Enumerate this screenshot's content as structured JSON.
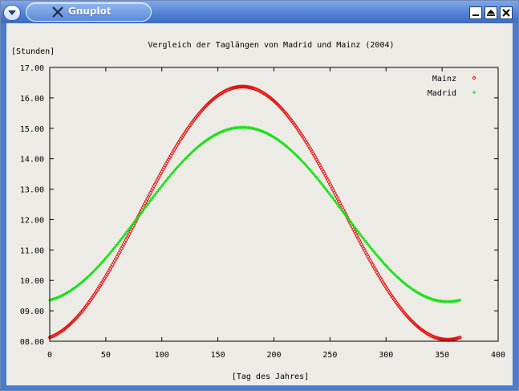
{
  "window": {
    "title": "Gnuplot",
    "icon": "x-logo-icon"
  },
  "titlebar_buttons": [
    "minimize-icon",
    "maximize-icon",
    "close-icon"
  ],
  "colors": {
    "mainz": "#e01010",
    "madrid": "#12e012",
    "frame": "#000000",
    "background": "#edebe6"
  },
  "chart_data": {
    "type": "scatter",
    "title": "Vergleich der Taglängen von Madrid und Mainz (2004)",
    "xlabel": "[Tag des Jahres]",
    "ylabel": "[Stunden]",
    "xlim": [
      0,
      400
    ],
    "ylim": [
      8,
      17
    ],
    "xticks": [
      "0",
      "50",
      "100",
      "150",
      "200",
      "250",
      "300",
      "350",
      "400"
    ],
    "yticks": [
      "08.00",
      "09.00",
      "10.00",
      "11.00",
      "12.00",
      "13.00",
      "14.00",
      "15.00",
      "16.00",
      "17.00"
    ],
    "legend_position": "top-right",
    "days": [
      0,
      366
    ],
    "series": [
      {
        "name": "Mainz",
        "marker": "diamond",
        "min": 8.05,
        "max": 16.37,
        "peak_day": 172
      },
      {
        "name": "Madrid",
        "marker": "plus",
        "min": 9.3,
        "max": 15.03,
        "peak_day": 172
      }
    ]
  }
}
